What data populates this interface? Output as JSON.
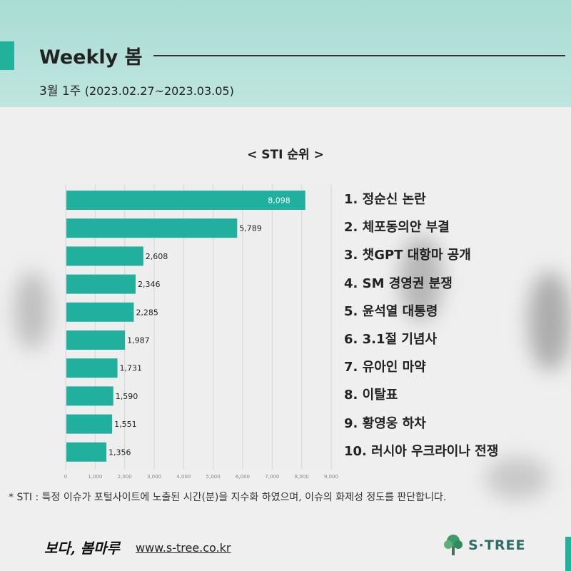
{
  "header": {
    "title": "Weekly 봄",
    "week": "3월 1주",
    "date_range": "(2023.02.27~2023.03.05)"
  },
  "chart_data": {
    "type": "bar",
    "orientation": "horizontal",
    "title": "< STI 순위 >",
    "categories": [
      "1. 정순신 논란",
      "2. 체포동의안 부결",
      "3. 챗GPT 대항마 공개",
      "4. SM 경영권 분쟁",
      "5. 윤석열 대통령",
      "6. 3.1절 기념사",
      "7. 유아인 마약",
      "8. 이탈표",
      "9. 황영웅 하차",
      "10. 러시아 우크라이나 전쟁"
    ],
    "values": [
      8098,
      5789,
      2608,
      2346,
      2285,
      1987,
      1731,
      1590,
      1551,
      1356
    ],
    "value_labels": [
      "8,098",
      "5,789",
      "2,608",
      "2,346",
      "2,285",
      "1,987",
      "1,731",
      "1,590",
      "1,551",
      "1,356"
    ],
    "xlim": [
      0,
      9000
    ],
    "xticks": [
      0,
      1000,
      2000,
      3000,
      4000,
      5000,
      6000,
      7000,
      8000,
      9000
    ],
    "xtick_labels": [
      "0",
      "1,000",
      "2,000",
      "3,000",
      "4,000",
      "5,000",
      "6,000",
      "7,000",
      "8,000",
      "9,000"
    ],
    "grid": true,
    "bar_color": "#20b09d"
  },
  "footnote": "* STI : 특정 이슈가 포털사이트에 노출된 시간(분)을 지수화 하였으며, 이슈의 화제성 정도를 판단합니다.",
  "footer": {
    "signature": "보다, 봄마루",
    "url": "www.s-tree.co.kr",
    "logo_text": "S·TREE"
  },
  "colors": {
    "accent": "#22b29c",
    "header_bg": "#b3e0d9",
    "logo": "#2b6f66"
  }
}
